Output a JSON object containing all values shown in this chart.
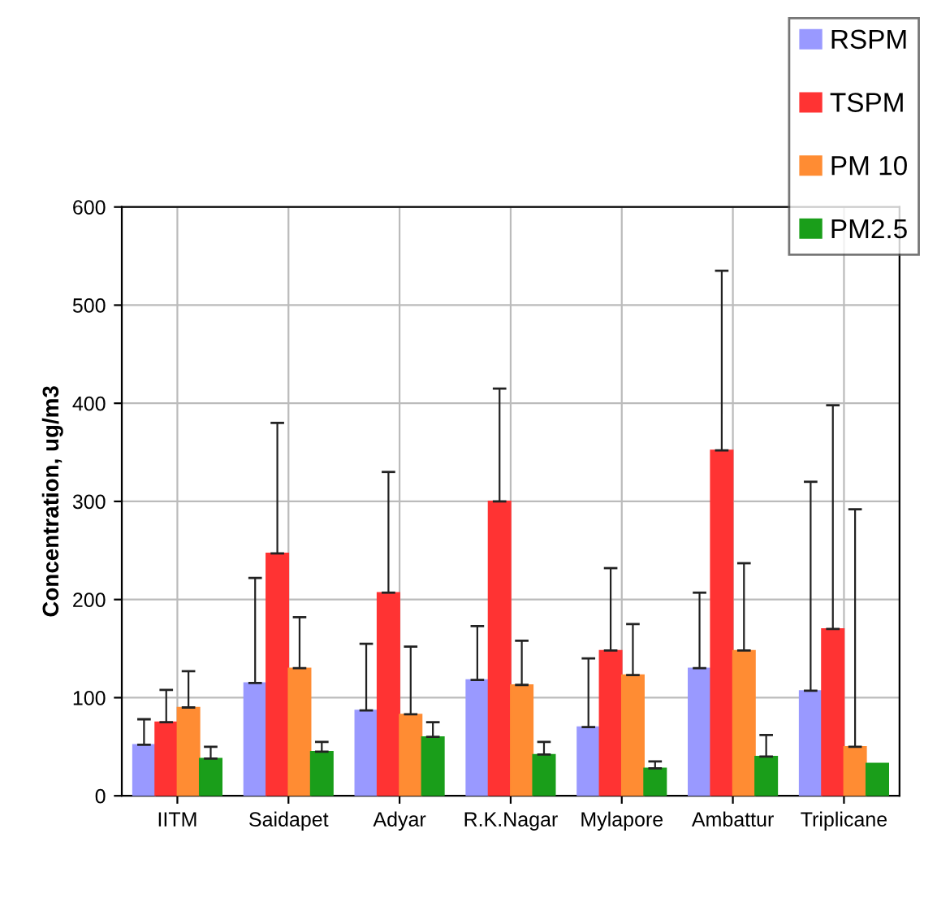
{
  "chart_data": {
    "type": "bar",
    "ylabel": "Concentration, ug/m3",
    "categories": [
      "IITM",
      "Saidapet",
      "Adyar",
      "R.K.Nagar",
      "Mylapore",
      "Ambattur",
      "Triplicane"
    ],
    "series": [
      {
        "name": "RSPM",
        "color": "#9999ff",
        "values": [
          52,
          115,
          87,
          118,
          70,
          130,
          107
        ],
        "errors": [
          [
            52,
            78
          ],
          [
            115,
            222
          ],
          [
            87,
            155
          ],
          [
            118,
            173
          ],
          [
            70,
            140
          ],
          [
            130,
            207
          ],
          [
            107,
            320
          ]
        ]
      },
      {
        "name": "TSPM",
        "color": "#ff3333",
        "values": [
          75,
          247,
          207,
          300,
          148,
          352,
          170
        ],
        "errors": [
          [
            75,
            108
          ],
          [
            247,
            380
          ],
          [
            207,
            330
          ],
          [
            300,
            415
          ],
          [
            148,
            232
          ],
          [
            352,
            535
          ],
          [
            170,
            398
          ]
        ]
      },
      {
        "name": "PM 10",
        "color": "#ff8c33",
        "values": [
          90,
          130,
          83,
          113,
          123,
          148,
          50
        ],
        "errors": [
          [
            90,
            127
          ],
          [
            130,
            182
          ],
          [
            83,
            152
          ],
          [
            113,
            158
          ],
          [
            123,
            175
          ],
          [
            148,
            237
          ],
          [
            50,
            292
          ]
        ]
      },
      {
        "name": "PM2.5",
        "color": "#1a9e1a",
        "values": [
          38,
          45,
          60,
          42,
          28,
          40,
          33
        ],
        "errors": [
          [
            38,
            50
          ],
          [
            45,
            55
          ],
          [
            60,
            75
          ],
          [
            42,
            55
          ],
          [
            28,
            35
          ],
          [
            40,
            62
          ],
          null
        ]
      }
    ],
    "ylim": [
      0,
      600
    ],
    "yticks": [
      0,
      100,
      200,
      300,
      400,
      500,
      600
    ],
    "grid": true,
    "legend": "top right"
  }
}
